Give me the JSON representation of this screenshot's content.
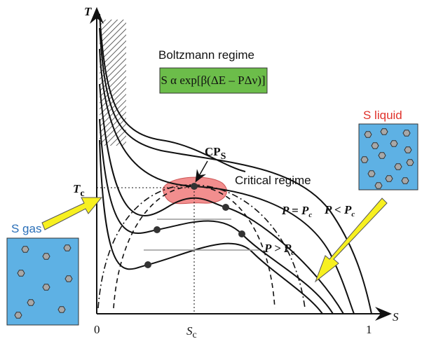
{
  "axes": {
    "y_label": "T",
    "x_label": "S",
    "origin": "0",
    "end": "1",
    "t_crit": {
      "main": "T",
      "sub": "c"
    },
    "s_crit": {
      "main": "S",
      "sub": "c"
    }
  },
  "regimes": {
    "boltzmann": "Boltzmann regime",
    "formula": "S α exp[β(ΔE – PΔν)]",
    "critical": "Critical regime"
  },
  "critical_point": {
    "main": "CP",
    "sub": "S"
  },
  "pressures": {
    "equal": {
      "main": "P = P",
      "sub": "c"
    },
    "less": {
      "main": "P < P",
      "sub": "c"
    },
    "greater": {
      "main": "P > P",
      "sub": "c"
    }
  },
  "boxes": {
    "liquid": "S liquid",
    "gas": "S gas"
  }
}
